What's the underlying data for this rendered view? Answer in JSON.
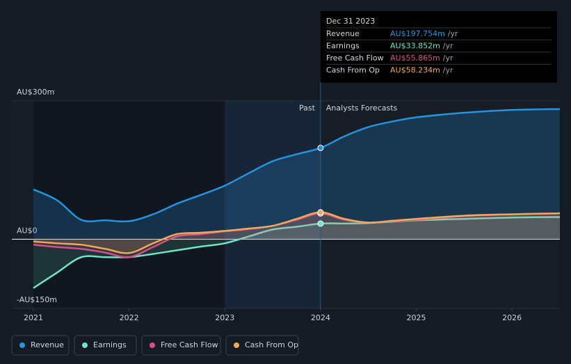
{
  "chart_data": {
    "type": "line",
    "x": [
      2021,
      2021.25,
      2021.5,
      2021.75,
      2022,
      2022.25,
      2022.5,
      2022.75,
      2023,
      2023.25,
      2023.5,
      2023.75,
      2024,
      2024.25,
      2024.5,
      2024.75,
      2025,
      2025.5,
      2026,
      2026.5
    ],
    "xlim": [
      2021,
      2026.5
    ],
    "xticks": [
      2021,
      2022,
      2023,
      2024,
      2025,
      2026
    ],
    "ylim": [
      -150,
      300
    ],
    "yticks": [
      {
        "value": -150,
        "label": "-AU$150m"
      },
      {
        "value": 0,
        "label": "AU$0"
      },
      {
        "value": 300,
        "label": "AU$300m"
      }
    ],
    "divider": 2024,
    "past_label": "Past",
    "forecast_label": "Analysts Forecasts",
    "tooltip_date": "Dec 31 2023",
    "tooltip_unit": "/yr",
    "series": [
      {
        "name": "Revenue",
        "color": "#2394df",
        "values": [
          108,
          84,
          42,
          41,
          39,
          54,
          77,
          96,
          116,
          143,
          169,
          184,
          197.754,
          223,
          243,
          255,
          264,
          274,
          280,
          282
        ],
        "value_labels": [
          null,
          null,
          null,
          null,
          null,
          null,
          null,
          null,
          null,
          null,
          null,
          null,
          "AU$197.754m",
          null,
          null,
          null,
          null,
          null,
          null,
          null
        ]
      },
      {
        "name": "Earnings",
        "color": "#6ee7c7",
        "values": [
          -106,
          -72,
          -39,
          -39,
          -39,
          -32,
          -24,
          -16,
          -9,
          6,
          21,
          27,
          33.852,
          34,
          35,
          38,
          41,
          44,
          47,
          48
        ],
        "value_labels": [
          null,
          null,
          null,
          null,
          null,
          null,
          null,
          null,
          null,
          null,
          null,
          null,
          "AU$33.852m",
          null,
          null,
          null,
          null,
          null,
          null,
          null
        ]
      },
      {
        "name": "Free Cash Flow",
        "color": "#d64f8a",
        "values": [
          -12,
          -17,
          -21,
          -29,
          -39,
          -17,
          6,
          11,
          17,
          22,
          29,
          42,
          55.865,
          42,
          36,
          39,
          42,
          50,
          54,
          56
        ],
        "value_labels": [
          null,
          null,
          null,
          null,
          null,
          null,
          null,
          null,
          null,
          null,
          null,
          null,
          "AU$55.865m",
          null,
          null,
          null,
          null,
          null,
          null,
          null
        ]
      },
      {
        "name": "Cash From Op",
        "color": "#f0a85a",
        "values": [
          -5,
          -9,
          -12,
          -21,
          -30,
          -9,
          11,
          14,
          18,
          23,
          29,
          44,
          58.234,
          44,
          36,
          40,
          44,
          51,
          54,
          56
        ],
        "value_labels": [
          null,
          null,
          null,
          null,
          null,
          null,
          null,
          null,
          null,
          null,
          null,
          null,
          "AU$58.234m",
          null,
          null,
          null,
          null,
          null,
          null,
          null
        ]
      }
    ]
  }
}
